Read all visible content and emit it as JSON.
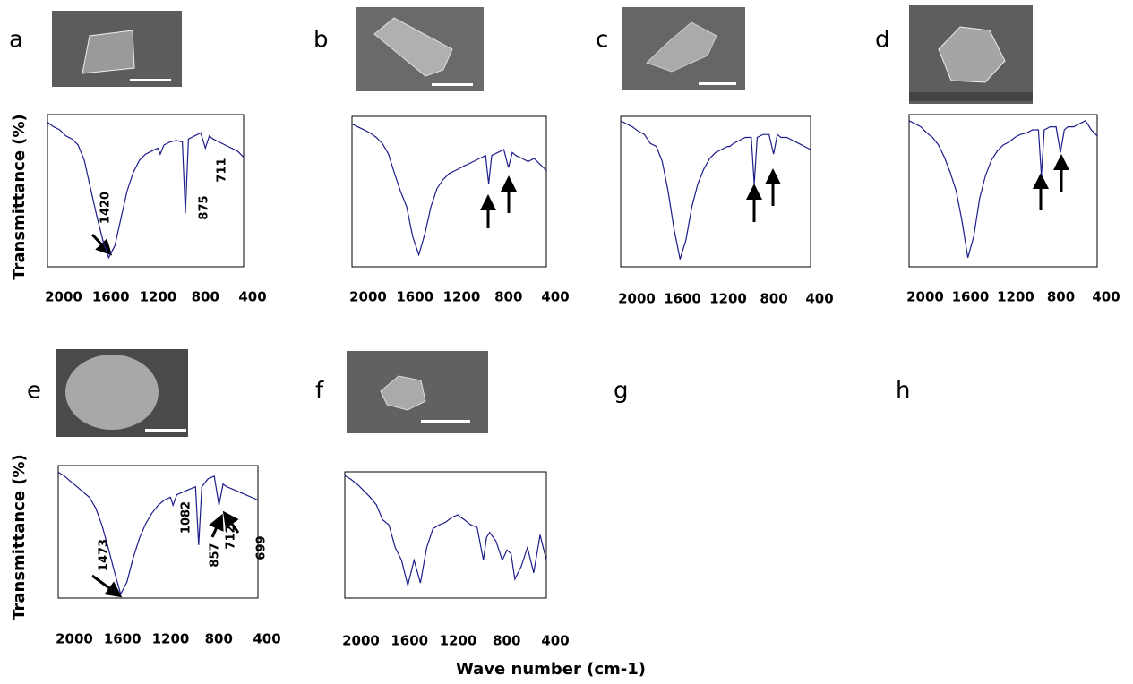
{
  "chart_data": [
    {
      "type": "line",
      "label": "a",
      "ylabel": "Transmittance (%)",
      "xlim": [
        2000,
        400
      ],
      "ylim": [
        0,
        100
      ],
      "xticks": [
        2000,
        1600,
        1200,
        800,
        400
      ],
      "color": "#1c1c8a",
      "annotations": [
        "1420",
        "875",
        "711"
      ],
      "x": [
        2000,
        1950,
        1900,
        1850,
        1800,
        1750,
        1700,
        1650,
        1600,
        1550,
        1500,
        1450,
        1400,
        1350,
        1300,
        1250,
        1200,
        1150,
        1100,
        1080,
        1050,
        1000,
        950,
        900,
        875,
        850,
        800,
        750,
        712,
        680,
        650,
        600,
        550,
        500,
        450,
        400
      ],
      "values": [
        95,
        92,
        90,
        86,
        84,
        80,
        70,
        52,
        34,
        18,
        6,
        14,
        32,
        50,
        62,
        70,
        74,
        76,
        78,
        74,
        80,
        82,
        83,
        82,
        35,
        84,
        86,
        88,
        78,
        86,
        84,
        82,
        80,
        78,
        76,
        72
      ]
    },
    {
      "type": "line",
      "label": "b",
      "xlim": [
        2000,
        400
      ],
      "ylim": [
        0,
        100
      ],
      "xticks": [
        2000,
        1600,
        1200,
        800,
        400
      ],
      "color": "#1c1c8a",
      "x": [
        2000,
        1950,
        1900,
        1850,
        1800,
        1750,
        1700,
        1650,
        1600,
        1550,
        1500,
        1450,
        1400,
        1350,
        1300,
        1250,
        1200,
        1150,
        1100,
        1080,
        1050,
        1000,
        950,
        900,
        875,
        850,
        800,
        750,
        712,
        680,
        650,
        600,
        550,
        500,
        450,
        400
      ],
      "values": [
        95,
        93,
        91,
        89,
        86,
        82,
        75,
        62,
        50,
        40,
        20,
        8,
        22,
        40,
        52,
        58,
        62,
        64,
        66,
        67,
        68,
        70,
        72,
        74,
        55,
        74,
        76,
        78,
        66,
        76,
        74,
        72,
        70,
        72,
        68,
        64
      ]
    },
    {
      "type": "line",
      "label": "c",
      "xlim": [
        2000,
        400
      ],
      "ylim": [
        0,
        100
      ],
      "xticks": [
        2000,
        1600,
        1200,
        800,
        400
      ],
      "color": "#1c1c8a",
      "x": [
        2000,
        1950,
        1900,
        1850,
        1800,
        1750,
        1700,
        1650,
        1600,
        1550,
        1500,
        1450,
        1400,
        1350,
        1300,
        1250,
        1200,
        1150,
        1100,
        1080,
        1050,
        1000,
        950,
        900,
        875,
        850,
        800,
        750,
        712,
        680,
        650,
        600,
        550,
        500,
        450,
        400
      ],
      "values": [
        97,
        95,
        93,
        90,
        88,
        82,
        80,
        70,
        50,
        25,
        5,
        18,
        40,
        55,
        65,
        72,
        76,
        78,
        80,
        80,
        82,
        84,
        86,
        86,
        55,
        86,
        88,
        88,
        75,
        88,
        86,
        86,
        84,
        82,
        80,
        78
      ]
    },
    {
      "type": "line",
      "label": "d",
      "xlim": [
        2000,
        400
      ],
      "ylim": [
        0,
        100
      ],
      "xticks": [
        2000,
        1600,
        1200,
        800,
        400
      ],
      "color": "#1c1c8a",
      "x": [
        2000,
        1950,
        1900,
        1850,
        1800,
        1750,
        1700,
        1650,
        1600,
        1550,
        1500,
        1450,
        1400,
        1350,
        1300,
        1250,
        1200,
        1150,
        1100,
        1080,
        1050,
        1000,
        950,
        900,
        875,
        850,
        800,
        750,
        712,
        680,
        650,
        600,
        550,
        500,
        450,
        400
      ],
      "values": [
        96,
        94,
        92,
        88,
        85,
        80,
        72,
        62,
        50,
        30,
        6,
        20,
        45,
        60,
        70,
        76,
        80,
        82,
        85,
        86,
        87,
        88,
        90,
        90,
        60,
        90,
        92,
        92,
        75,
        90,
        92,
        92,
        94,
        96,
        90,
        86
      ]
    },
    {
      "type": "line",
      "label": "e",
      "ylabel": "Transmittance (%)",
      "xlim": [
        2000,
        400
      ],
      "ylim": [
        0,
        100
      ],
      "xticks": [
        2000,
        1600,
        1200,
        800,
        400
      ],
      "color": "#1c1c8a",
      "annotations": [
        "1473",
        "1082",
        "857",
        "712",
        "699"
      ],
      "x": [
        2000,
        1950,
        1900,
        1850,
        1800,
        1750,
        1700,
        1650,
        1600,
        1550,
        1500,
        1450,
        1400,
        1350,
        1300,
        1250,
        1200,
        1150,
        1100,
        1080,
        1050,
        1000,
        950,
        900,
        875,
        850,
        800,
        750,
        712,
        680,
        650,
        600,
        550,
        500,
        450,
        400
      ],
      "values": [
        95,
        92,
        88,
        84,
        80,
        76,
        68,
        55,
        38,
        20,
        3,
        12,
        30,
        45,
        56,
        64,
        70,
        74,
        76,
        70,
        78,
        80,
        82,
        84,
        40,
        84,
        90,
        92,
        70,
        86,
        84,
        82,
        80,
        78,
        76,
        74
      ]
    },
    {
      "type": "line",
      "label": "f",
      "xlabel": "Wave number (cm-1)",
      "xlim": [
        2000,
        400
      ],
      "ylim": [
        0,
        100
      ],
      "xticks": [
        2000,
        1600,
        1200,
        800,
        400
      ],
      "color": "#1c1c8a",
      "x": [
        2000,
        1950,
        1900,
        1850,
        1800,
        1750,
        1700,
        1650,
        1600,
        1550,
        1500,
        1450,
        1400,
        1350,
        1300,
        1250,
        1200,
        1150,
        1100,
        1080,
        1050,
        1000,
        950,
        900,
        875,
        850,
        800,
        750,
        712,
        680,
        650,
        600,
        550,
        500,
        450,
        400
      ],
      "values": [
        97,
        94,
        90,
        85,
        80,
        74,
        62,
        58,
        40,
        30,
        10,
        30,
        12,
        40,
        55,
        58,
        60,
        64,
        66,
        64,
        62,
        58,
        56,
        30,
        48,
        52,
        45,
        30,
        38,
        35,
        15,
        25,
        40,
        20,
        50,
        30
      ]
    }
  ],
  "empty_panels": [
    "g",
    "h"
  ]
}
